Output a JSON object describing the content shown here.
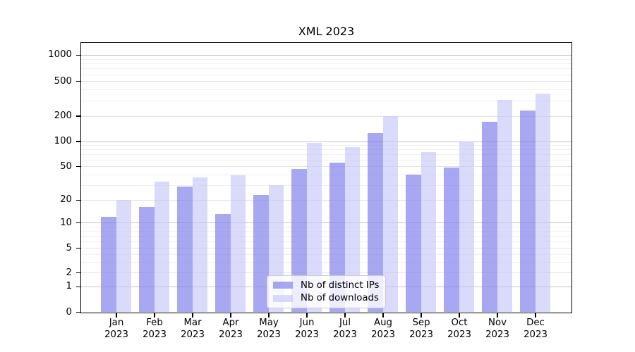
{
  "chart_data": {
    "type": "bar",
    "title": "XML 2023",
    "categories": [
      "Jan",
      "Feb",
      "Mar",
      "Apr",
      "May",
      "Jun",
      "Jul",
      "Aug",
      "Sep",
      "Oct",
      "Nov",
      "Dec"
    ],
    "category_year": "2023",
    "series": [
      {
        "name": "Nb of distinct IPs",
        "color": "rgba(122,122,235,0.66)",
        "values": [
          12,
          16,
          29,
          13,
          23,
          47,
          56,
          125,
          40,
          48,
          170,
          230
        ]
      },
      {
        "name": "Nb of downloads",
        "color": "rgba(196,196,248,0.63)",
        "values": [
          20,
          33,
          37,
          39,
          30,
          95,
          85,
          200,
          74,
          100,
          305,
          360
        ]
      }
    ],
    "yscale": "symlog",
    "yticks": [
      0,
      1,
      2,
      5,
      10,
      20,
      50,
      100,
      200,
      500,
      1000
    ],
    "minor_ticks": [
      3,
      4,
      6,
      7,
      8,
      9,
      30,
      40,
      60,
      70,
      80,
      90,
      300,
      400,
      600,
      700,
      800,
      900
    ],
    "ylim": [
      0,
      1400
    ],
    "grid": true,
    "legend_position": "lower center",
    "xlabel": "",
    "ylabel": ""
  },
  "colors": {
    "bar_ips": "rgba(122,122,235,0.66)",
    "bar_downloads": "rgba(196,196,248,0.63)",
    "grid_decade": "#c4c4c4",
    "grid_labeled": "#e3e3e3",
    "grid_minor": "#f1f1f1",
    "axis": "#000000",
    "background": "#ffffff"
  }
}
